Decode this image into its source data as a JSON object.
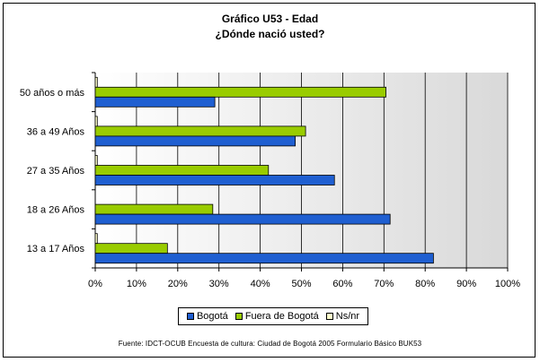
{
  "chart_data": {
    "type": "bar",
    "orientation": "horizontal",
    "title": "Gráfico U53 - Edad",
    "subtitle": "¿Dónde nació usted?",
    "categories": [
      "50 años o más",
      "36 a 49 Años",
      "27 a 35 Años",
      "18 a 26 Años",
      "13 a 17 Años"
    ],
    "series": [
      {
        "name": "Bogotá",
        "color": "#1f5fd1",
        "values": [
          29,
          48.5,
          58,
          71.5,
          82
        ]
      },
      {
        "name": "Fuera de Bogotá",
        "color": "#99cc00",
        "values": [
          70.5,
          51,
          42,
          28.5,
          17.5
        ]
      },
      {
        "name": "Ns/nr",
        "color": "#ffffcc",
        "values": [
          0.5,
          0.5,
          0.5,
          0,
          0.5
        ]
      }
    ],
    "xlim": [
      0,
      100
    ],
    "xticks": [
      "0%",
      "10%",
      "20%",
      "30%",
      "40%",
      "50%",
      "60%",
      "70%",
      "80%",
      "90%",
      "100%"
    ],
    "grid": true,
    "legend_position": "bottom",
    "source": "Fuente: IDCT-OCUB Encuesta de cultura: Ciudad de Bogotá 2005 Formulario Básico BUK53"
  }
}
